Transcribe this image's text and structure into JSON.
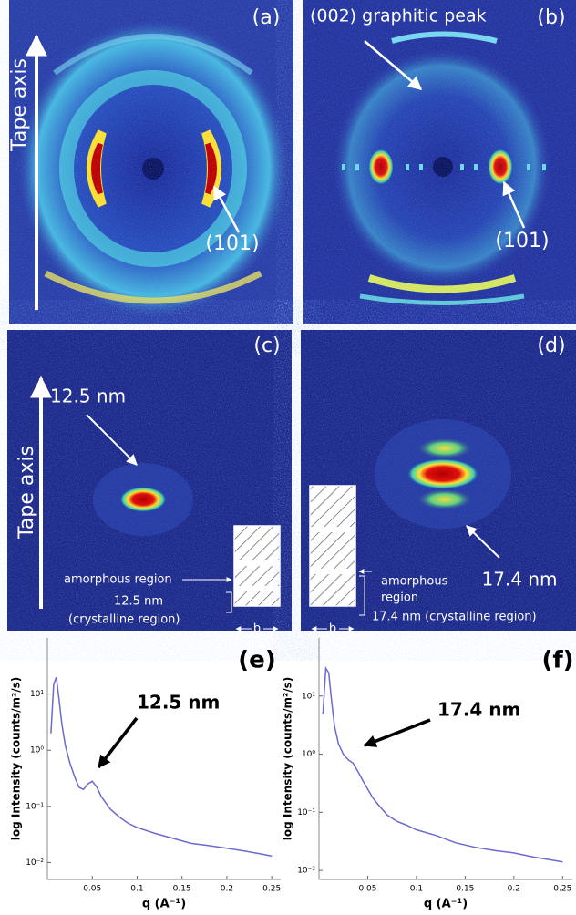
{
  "panels": {
    "a": {
      "label": "(a)",
      "axis_label": "Tape axis",
      "peak_label": "(101)"
    },
    "b": {
      "label": "(b)",
      "top_label": "(002) graphitic peak",
      "peak_label": "(101)"
    },
    "c": {
      "label": "(c)",
      "axis_label": "Tape axis",
      "spacing_label": "12.5 nm",
      "amorphous_label": "amorphous region",
      "crystal_size": "12.5 nm",
      "crystal_label": "(crystalline region)",
      "width_label": "b"
    },
    "d": {
      "label": "(d)",
      "spacing_label": "17.4 nm",
      "amorphous_label_1": "amorphous",
      "amorphous_label_2": "region",
      "crystal_label": "17.4 nm (crystalline region)",
      "width_label": "b"
    }
  },
  "chart_data": [
    {
      "type": "line",
      "panel_label": "(e)",
      "annotation": "12.5 nm",
      "y_label": "log Intensity (counts/m²/s)",
      "x_label": "q (A⁻¹)",
      "log_scale": true,
      "color": "#6a6ad0",
      "x": [
        0.004,
        0.007,
        0.01,
        0.013,
        0.016,
        0.02,
        0.025,
        0.03,
        0.035,
        0.04,
        0.045,
        0.05,
        0.055,
        0.06,
        0.07,
        0.08,
        0.09,
        0.1,
        0.12,
        0.14,
        0.16,
        0.18,
        0.2,
        0.22,
        0.24,
        0.25
      ],
      "values": [
        2,
        15,
        20,
        8,
        3,
        1.2,
        0.6,
        0.35,
        0.22,
        0.2,
        0.25,
        0.28,
        0.22,
        0.15,
        0.09,
        0.065,
        0.05,
        0.042,
        0.033,
        0.027,
        0.022,
        0.02,
        0.018,
        0.016,
        0.014,
        0.013
      ],
      "xlim": [
        0,
        0.26
      ],
      "ylim": [
        0.005,
        100
      ],
      "xticks": [
        0.05,
        0.1,
        0.15,
        0.2,
        0.25
      ],
      "yticks": [
        {
          "value": 0.01,
          "label": "10⁻²"
        },
        {
          "value": 0.1,
          "label": "10⁻¹"
        },
        {
          "value": 1,
          "label": "10⁰"
        },
        {
          "value": 10,
          "label": "10¹"
        }
      ]
    },
    {
      "type": "line",
      "panel_label": "(f)",
      "annotation": "17.4 nm",
      "y_label": "log Intensity (counts/m²/s)",
      "x_label": "q (A⁻¹)",
      "log_scale": true,
      "color": "#6a6ad0",
      "x": [
        0.004,
        0.007,
        0.01,
        0.013,
        0.016,
        0.02,
        0.025,
        0.03,
        0.035,
        0.04,
        0.045,
        0.05,
        0.055,
        0.06,
        0.07,
        0.08,
        0.09,
        0.1,
        0.12,
        0.14,
        0.16,
        0.18,
        0.2,
        0.22,
        0.24,
        0.25
      ],
      "values": [
        5,
        30,
        25,
        8,
        3,
        1.5,
        1.0,
        0.8,
        0.7,
        0.5,
        0.35,
        0.25,
        0.18,
        0.14,
        0.09,
        0.07,
        0.06,
        0.05,
        0.04,
        0.03,
        0.025,
        0.022,
        0.02,
        0.017,
        0.015,
        0.014
      ],
      "xlim": [
        0,
        0.26
      ],
      "ylim": [
        0.007,
        100
      ],
      "xticks": [
        0.05,
        0.1,
        0.15,
        0.2,
        0.25
      ],
      "yticks": [
        {
          "value": 0.01,
          "label": "10⁻²"
        },
        {
          "value": 0.1,
          "label": "10⁻¹"
        },
        {
          "value": 1,
          "label": "10⁰"
        },
        {
          "value": 10,
          "label": "10¹"
        }
      ]
    }
  ]
}
